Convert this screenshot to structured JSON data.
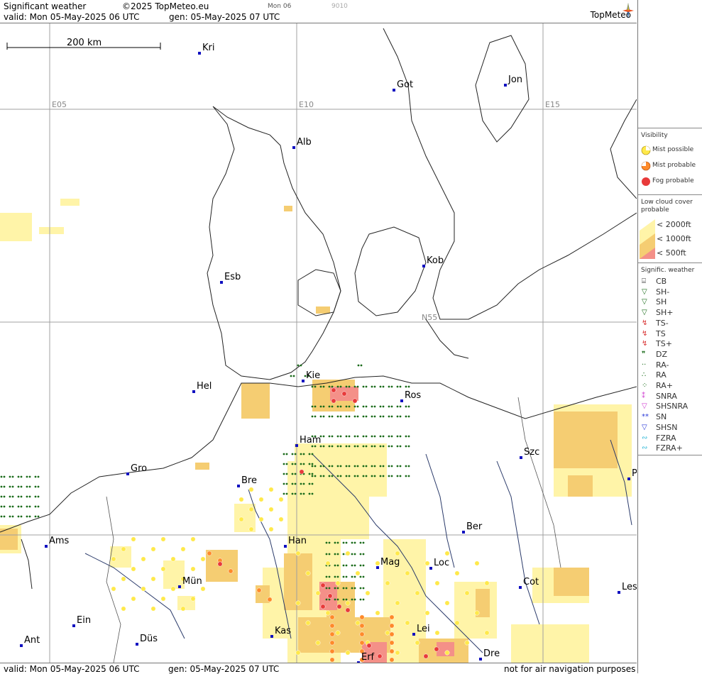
{
  "header": {
    "title": "Significant weather",
    "copyright": "©2025 TopMeteo.eu",
    "valid": "valid:  Mon  05-May-2025  06 UTC",
    "gen": "gen: 05-May-2025 07 UTC",
    "run_tag": "Mon 06",
    "code": "9010",
    "logo": "TopMeteo"
  },
  "footer": {
    "valid": "valid:  Mon  05-May-2025  06 UTC",
    "gen": "gen: 05-May-2025 07 UTC",
    "disclaimer": "not for air navigation purposes"
  },
  "map": {
    "scale_label": "200 km",
    "grid_labels": [
      "E05",
      "E10",
      "E15",
      "N55"
    ],
    "cities": [
      "Kri",
      "Got",
      "Jon",
      "Alb",
      "Kob",
      "Esb",
      "Kie",
      "Hel",
      "Ros",
      "Ham",
      "Szc",
      "Gro",
      "Bre",
      "Ams",
      "Han",
      "Ber",
      "Mag",
      "Loc",
      "Mün",
      "Cot",
      "Les",
      "Ein",
      "Kas",
      "Lei",
      "Ant",
      "Düs",
      "Dre",
      "Erf",
      "P"
    ]
  },
  "legend": {
    "visibility_title": "Visibility",
    "visibility": [
      "Mist possible",
      "Mist probable",
      "Fog probable"
    ],
    "lowcloud_title": "Low cloud cover probable",
    "lowcloud": [
      "< 2000ft",
      "< 1000ft",
      "<  500ft"
    ],
    "sigwx_title": "Signific. weather",
    "sigwx": [
      "CB",
      "SH-",
      "SH",
      "SH+",
      "TS-",
      "TS",
      "TS+",
      "DZ",
      "RA-",
      "RA",
      "RA+",
      "SNRA",
      "SHSNRA",
      "SN",
      "SHSN",
      "FZRA",
      "FZRA+"
    ],
    "colors": {
      "cloud_2000": "#fff4a8",
      "cloud_1000": "#f5cd72",
      "cloud_500": "#f49088",
      "mist_possible": "#ffe94a",
      "mist_probable": "#ff8a2a",
      "fog_probable": "#e83a3a",
      "rain": "#1a6b1a",
      "ts": "#d83030",
      "snow": "#d040d0",
      "sn": "#2a3ad8",
      "fzra": "#30b8d8"
    }
  }
}
